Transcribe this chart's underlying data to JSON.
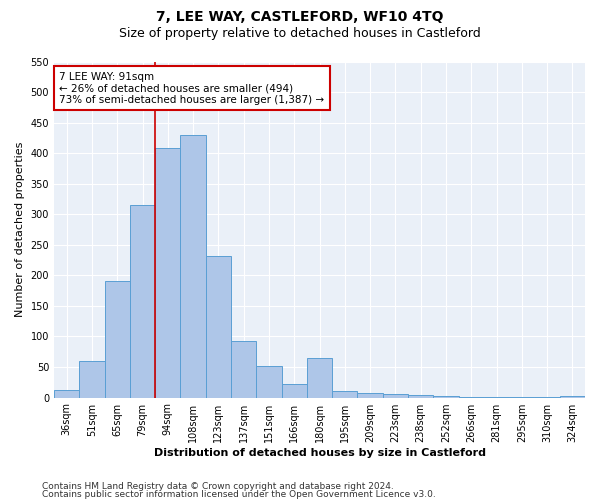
{
  "title": "7, LEE WAY, CASTLEFORD, WF10 4TQ",
  "subtitle": "Size of property relative to detached houses in Castleford",
  "xlabel": "Distribution of detached houses by size in Castleford",
  "ylabel": "Number of detached properties",
  "categories": [
    "36sqm",
    "51sqm",
    "65sqm",
    "79sqm",
    "94sqm",
    "108sqm",
    "123sqm",
    "137sqm",
    "151sqm",
    "166sqm",
    "180sqm",
    "195sqm",
    "209sqm",
    "223sqm",
    "238sqm",
    "252sqm",
    "266sqm",
    "281sqm",
    "295sqm",
    "310sqm",
    "324sqm"
  ],
  "values": [
    12,
    60,
    190,
    315,
    408,
    430,
    232,
    92,
    52,
    22,
    65,
    10,
    8,
    6,
    4,
    2,
    1,
    1,
    1,
    1,
    3
  ],
  "bar_color": "#aec6e8",
  "bar_edge_color": "#5a9fd4",
  "vline_x_index": 4,
  "vline_color": "#cc0000",
  "annotation_line1": "7 LEE WAY: 91sqm",
  "annotation_line2": "← 26% of detached houses are smaller (494)",
  "annotation_line3": "73% of semi-detached houses are larger (1,387) →",
  "annotation_box_color": "#ffffff",
  "annotation_box_edge_color": "#cc0000",
  "ylim": [
    0,
    550
  ],
  "yticks": [
    0,
    50,
    100,
    150,
    200,
    250,
    300,
    350,
    400,
    450,
    500,
    550
  ],
  "bg_color": "#eaf0f8",
  "footer_line1": "Contains HM Land Registry data © Crown copyright and database right 2024.",
  "footer_line2": "Contains public sector information licensed under the Open Government Licence v3.0.",
  "title_fontsize": 10,
  "subtitle_fontsize": 9,
  "axis_label_fontsize": 8,
  "tick_fontsize": 7,
  "annotation_fontsize": 7.5,
  "footer_fontsize": 6.5
}
